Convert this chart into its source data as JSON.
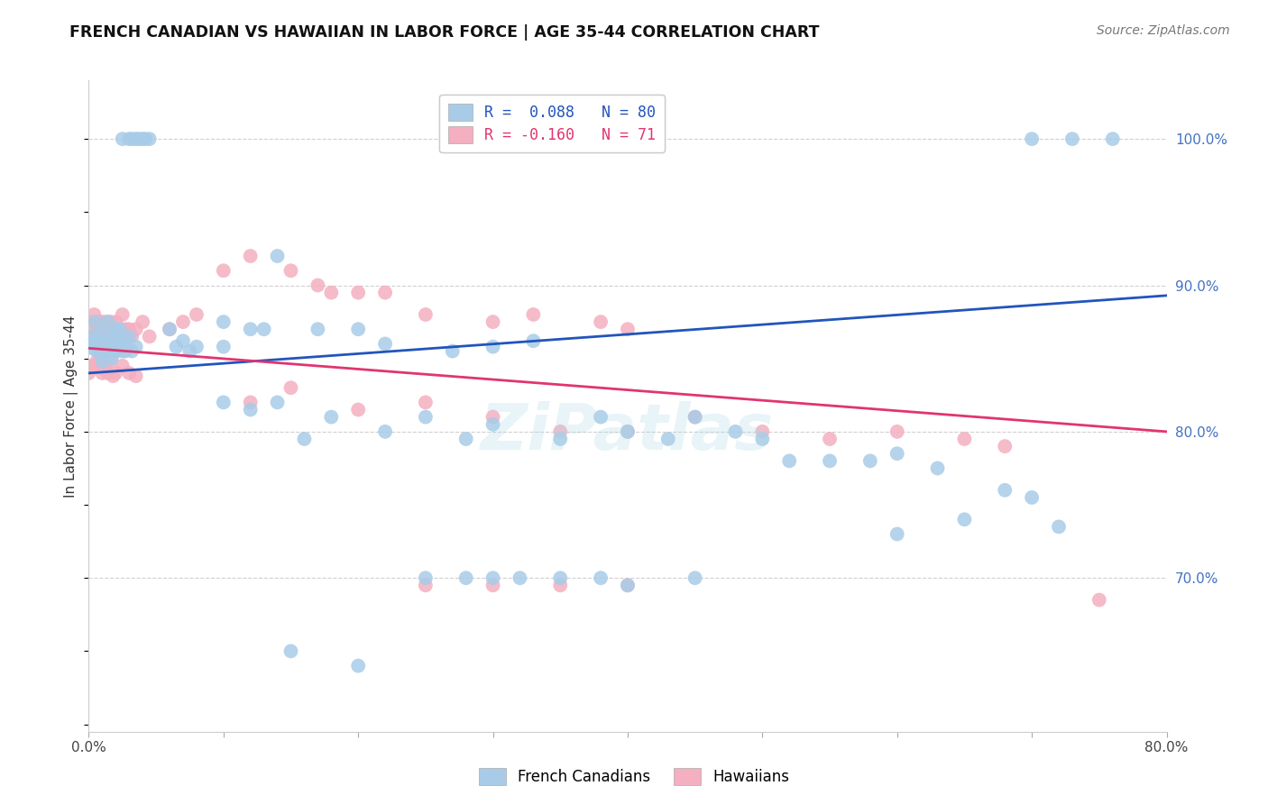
{
  "title": "FRENCH CANADIAN VS HAWAIIAN IN LABOR FORCE | AGE 35-44 CORRELATION CHART",
  "source": "Source: ZipAtlas.com",
  "ylabel": "In Labor Force | Age 35-44",
  "xlim": [
    0.0,
    0.8
  ],
  "ylim": [
    0.595,
    1.04
  ],
  "xtick_positions": [
    0.0,
    0.1,
    0.2,
    0.3,
    0.4,
    0.5,
    0.6,
    0.7,
    0.8
  ],
  "xticklabels": [
    "0.0%",
    "",
    "",
    "",
    "",
    "",
    "",
    "",
    "80.0%"
  ],
  "yticks_right": [
    0.7,
    0.8,
    0.9,
    1.0
  ],
  "ytick_labels_right": [
    "70.0%",
    "80.0%",
    "90.0%",
    "100.0%"
  ],
  "blue_color": "#a8cce8",
  "pink_color": "#f4afc0",
  "blue_line_color": "#2255bb",
  "pink_line_color": "#e03570",
  "blue_series_name": "French Canadians",
  "pink_series_name": "Hawaiians",
  "blue_trend_x0": 0.0,
  "blue_trend_y0": 0.84,
  "blue_trend_x1": 0.8,
  "blue_trend_y1": 0.893,
  "pink_trend_x0": 0.0,
  "pink_trend_y0": 0.857,
  "pink_trend_x1": 0.8,
  "pink_trend_y1": 0.8,
  "watermark_text": "ZiPatlas",
  "watermark_color": "#add8e6",
  "watermark_alpha": 0.28,
  "watermark_size": 52,
  "blue_dots": [
    [
      0.002,
      0.865
    ],
    [
      0.003,
      0.857
    ],
    [
      0.004,
      0.862
    ],
    [
      0.005,
      0.875
    ],
    [
      0.006,
      0.855
    ],
    [
      0.007,
      0.862
    ],
    [
      0.008,
      0.858
    ],
    [
      0.009,
      0.855
    ],
    [
      0.01,
      0.868
    ],
    [
      0.01,
      0.848
    ],
    [
      0.012,
      0.862
    ],
    [
      0.013,
      0.855
    ],
    [
      0.014,
      0.875
    ],
    [
      0.015,
      0.86
    ],
    [
      0.016,
      0.855
    ],
    [
      0.017,
      0.85
    ],
    [
      0.018,
      0.865
    ],
    [
      0.019,
      0.855
    ],
    [
      0.02,
      0.87
    ],
    [
      0.021,
      0.855
    ],
    [
      0.022,
      0.862
    ],
    [
      0.023,
      0.87
    ],
    [
      0.024,
      0.858
    ],
    [
      0.025,
      0.855
    ],
    [
      0.026,
      0.862
    ],
    [
      0.027,
      0.855
    ],
    [
      0.028,
      0.858
    ],
    [
      0.03,
      0.865
    ],
    [
      0.032,
      0.855
    ],
    [
      0.035,
      0.858
    ],
    [
      0.06,
      0.87
    ],
    [
      0.065,
      0.858
    ],
    [
      0.07,
      0.862
    ],
    [
      0.075,
      0.855
    ],
    [
      0.08,
      0.858
    ],
    [
      0.1,
      0.875
    ],
    [
      0.1,
      0.858
    ],
    [
      0.12,
      0.87
    ],
    [
      0.13,
      0.87
    ],
    [
      0.14,
      0.92
    ],
    [
      0.17,
      0.87
    ],
    [
      0.2,
      0.87
    ],
    [
      0.22,
      0.86
    ],
    [
      0.27,
      0.855
    ],
    [
      0.3,
      0.858
    ],
    [
      0.33,
      0.862
    ],
    [
      0.1,
      0.82
    ],
    [
      0.12,
      0.815
    ],
    [
      0.14,
      0.82
    ],
    [
      0.16,
      0.795
    ],
    [
      0.18,
      0.81
    ],
    [
      0.22,
      0.8
    ],
    [
      0.25,
      0.81
    ],
    [
      0.28,
      0.795
    ],
    [
      0.3,
      0.805
    ],
    [
      0.35,
      0.795
    ],
    [
      0.38,
      0.81
    ],
    [
      0.4,
      0.8
    ],
    [
      0.43,
      0.795
    ],
    [
      0.45,
      0.81
    ],
    [
      0.48,
      0.8
    ],
    [
      0.5,
      0.795
    ],
    [
      0.52,
      0.78
    ],
    [
      0.55,
      0.78
    ],
    [
      0.58,
      0.78
    ],
    [
      0.6,
      0.785
    ],
    [
      0.63,
      0.775
    ],
    [
      0.65,
      0.74
    ],
    [
      0.68,
      0.76
    ],
    [
      0.7,
      0.755
    ],
    [
      0.72,
      0.735
    ],
    [
      0.15,
      0.65
    ],
    [
      0.2,
      0.64
    ],
    [
      0.25,
      0.7
    ],
    [
      0.28,
      0.7
    ],
    [
      0.3,
      0.7
    ],
    [
      0.32,
      0.7
    ],
    [
      0.35,
      0.7
    ],
    [
      0.38,
      0.7
    ],
    [
      0.4,
      0.695
    ],
    [
      0.45,
      0.7
    ],
    [
      0.6,
      0.73
    ],
    [
      0.025,
      1.0
    ],
    [
      0.03,
      1.0
    ],
    [
      0.032,
      1.0
    ],
    [
      0.035,
      1.0
    ],
    [
      0.037,
      1.0
    ],
    [
      0.04,
      1.0
    ],
    [
      0.042,
      1.0
    ],
    [
      0.045,
      1.0
    ],
    [
      0.7,
      1.0
    ],
    [
      0.73,
      1.0
    ],
    [
      0.76,
      1.0
    ]
  ],
  "pink_dots": [
    [
      0.0,
      0.875
    ],
    [
      0.002,
      0.87
    ],
    [
      0.003,
      0.865
    ],
    [
      0.004,
      0.88
    ],
    [
      0.005,
      0.875
    ],
    [
      0.006,
      0.865
    ],
    [
      0.007,
      0.87
    ],
    [
      0.008,
      0.875
    ],
    [
      0.009,
      0.868
    ],
    [
      0.01,
      0.875
    ],
    [
      0.012,
      0.87
    ],
    [
      0.013,
      0.875
    ],
    [
      0.014,
      0.865
    ],
    [
      0.015,
      0.87
    ],
    [
      0.016,
      0.875
    ],
    [
      0.017,
      0.865
    ],
    [
      0.018,
      0.87
    ],
    [
      0.019,
      0.865
    ],
    [
      0.02,
      0.875
    ],
    [
      0.022,
      0.865
    ],
    [
      0.025,
      0.88
    ],
    [
      0.027,
      0.87
    ],
    [
      0.028,
      0.865
    ],
    [
      0.03,
      0.87
    ],
    [
      0.032,
      0.865
    ],
    [
      0.035,
      0.87
    ],
    [
      0.04,
      0.875
    ],
    [
      0.045,
      0.865
    ],
    [
      0.0,
      0.84
    ],
    [
      0.002,
      0.845
    ],
    [
      0.004,
      0.845
    ],
    [
      0.006,
      0.848
    ],
    [
      0.008,
      0.848
    ],
    [
      0.01,
      0.84
    ],
    [
      0.012,
      0.845
    ],
    [
      0.014,
      0.84
    ],
    [
      0.016,
      0.848
    ],
    [
      0.018,
      0.838
    ],
    [
      0.02,
      0.84
    ],
    [
      0.025,
      0.845
    ],
    [
      0.03,
      0.84
    ],
    [
      0.035,
      0.838
    ],
    [
      0.06,
      0.87
    ],
    [
      0.07,
      0.875
    ],
    [
      0.08,
      0.88
    ],
    [
      0.1,
      0.91
    ],
    [
      0.12,
      0.92
    ],
    [
      0.15,
      0.91
    ],
    [
      0.17,
      0.9
    ],
    [
      0.18,
      0.895
    ],
    [
      0.2,
      0.895
    ],
    [
      0.22,
      0.895
    ],
    [
      0.25,
      0.88
    ],
    [
      0.3,
      0.875
    ],
    [
      0.33,
      0.88
    ],
    [
      0.38,
      0.875
    ],
    [
      0.4,
      0.87
    ],
    [
      0.12,
      0.82
    ],
    [
      0.15,
      0.83
    ],
    [
      0.2,
      0.815
    ],
    [
      0.25,
      0.82
    ],
    [
      0.3,
      0.81
    ],
    [
      0.35,
      0.8
    ],
    [
      0.4,
      0.8
    ],
    [
      0.45,
      0.81
    ],
    [
      0.5,
      0.8
    ],
    [
      0.55,
      0.795
    ],
    [
      0.6,
      0.8
    ],
    [
      0.65,
      0.795
    ],
    [
      0.68,
      0.79
    ],
    [
      0.25,
      0.695
    ],
    [
      0.3,
      0.695
    ],
    [
      0.35,
      0.695
    ],
    [
      0.4,
      0.695
    ],
    [
      0.75,
      0.685
    ]
  ]
}
